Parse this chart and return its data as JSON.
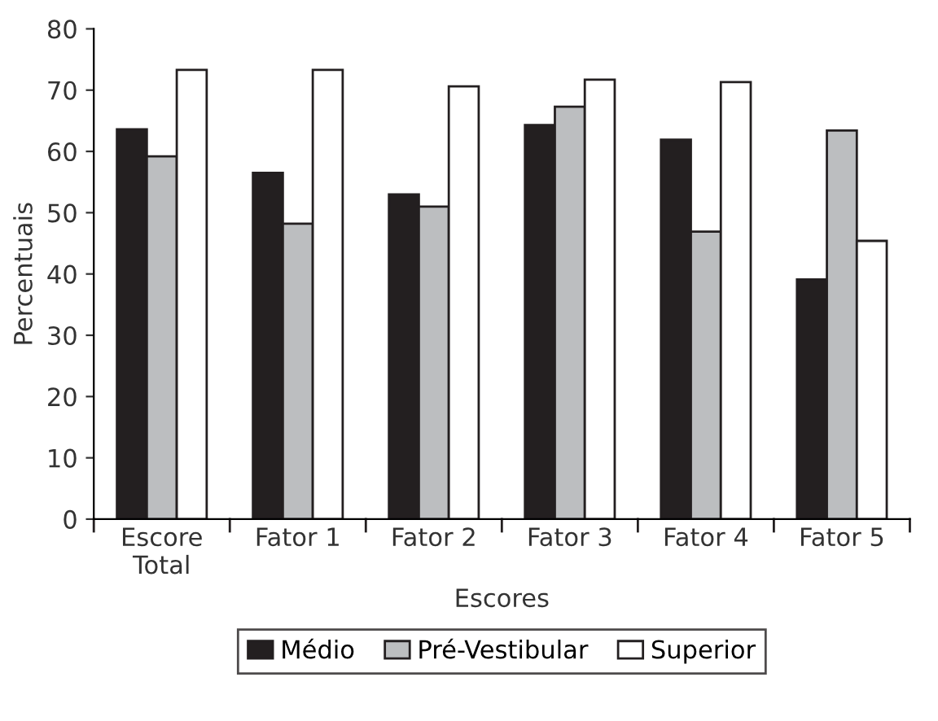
{
  "chart_data": {
    "type": "bar",
    "xlabel": "Escores",
    "ylabel": "Percentuais",
    "categories": [
      "Escore\nTotal",
      "Fator 1",
      "Fator 2",
      "Fator 3",
      "Fator 4",
      "Fator 5"
    ],
    "series": [
      {
        "name": "Médio",
        "color": "#231f20",
        "values": [
          63.6,
          56.5,
          53.0,
          64.3,
          61.9,
          39.1
        ]
      },
      {
        "name": "Pré-Vestibular",
        "color": "#bcbec0",
        "values": [
          59.2,
          48.2,
          51.0,
          67.3,
          46.9,
          63.4
        ]
      },
      {
        "name": "Superior",
        "color": "#ffffff",
        "values": [
          73.3,
          73.3,
          70.6,
          71.7,
          71.3,
          45.4
        ]
      }
    ],
    "ylim": [
      0,
      80
    ],
    "yticks": [
      0,
      10,
      20,
      30,
      40,
      50,
      60,
      70,
      80
    ],
    "grid": false,
    "legend": "bottom"
  }
}
